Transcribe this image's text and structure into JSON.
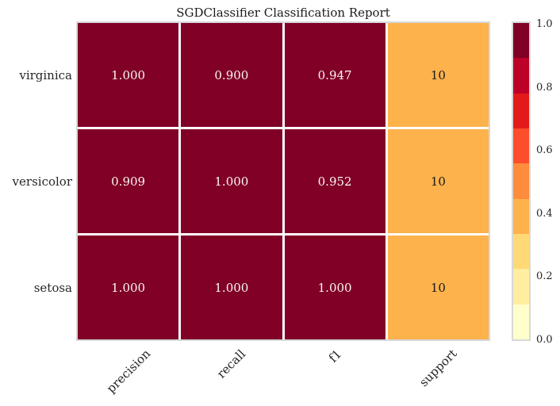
{
  "title": "SGDClassifier Classification Report",
  "chart_data": {
    "type": "heatmap",
    "title": "SGDClassifier Classification Report",
    "rows": [
      "virginica",
      "versicolor",
      "setosa"
    ],
    "columns": [
      "precision",
      "recall",
      "f1",
      "support"
    ],
    "series": [
      {
        "name": "virginica",
        "precision": 1.0,
        "recall": 0.9,
        "f1": 0.947,
        "support": 10
      },
      {
        "name": "versicolor",
        "precision": 0.909,
        "recall": 1.0,
        "f1": 0.952,
        "support": 10
      },
      {
        "name": "setosa",
        "precision": 1.0,
        "recall": 1.0,
        "f1": 1.0,
        "support": 10
      }
    ],
    "cell_text": [
      [
        "1.000",
        "0.900",
        "0.947",
        "10"
      ],
      [
        "0.909",
        "1.000",
        "0.952",
        "10"
      ],
      [
        "1.000",
        "1.000",
        "1.000",
        "10"
      ]
    ],
    "cell_colors": [
      [
        "#800026",
        "#800026",
        "#800026",
        "#feb24c"
      ],
      [
        "#800026",
        "#800026",
        "#800026",
        "#feb24c"
      ],
      [
        "#800026",
        "#800026",
        "#800026",
        "#feb24c"
      ]
    ],
    "cell_text_colors": [
      [
        "#fcf7ef",
        "#fcf7ef",
        "#fcf7ef",
        "#1a1a1a"
      ],
      [
        "#fcf7ef",
        "#fcf7ef",
        "#fcf7ef",
        "#1a1a1a"
      ],
      [
        "#fcf7ef",
        "#fcf7ef",
        "#fcf7ef",
        "#1a1a1a"
      ]
    ],
    "grid_line_color": "#ffffff",
    "spine_color": "#d8d8d8",
    "colorbar": {
      "position": "right",
      "min": 0.0,
      "max": 1.0,
      "tick_labels": [
        "1.0",
        "0.8",
        "0.6",
        "0.4",
        "0.2",
        "0.0"
      ],
      "tick_values": [
        1.0,
        0.8,
        0.6,
        0.4,
        0.2,
        0.0
      ],
      "segment_colors_top_to_bottom": [
        "#800026",
        "#bd0026",
        "#e31a1c",
        "#fc4e2a",
        "#fd8d3c",
        "#feb24c",
        "#fed976",
        "#ffeda0",
        "#ffffcc"
      ]
    }
  }
}
